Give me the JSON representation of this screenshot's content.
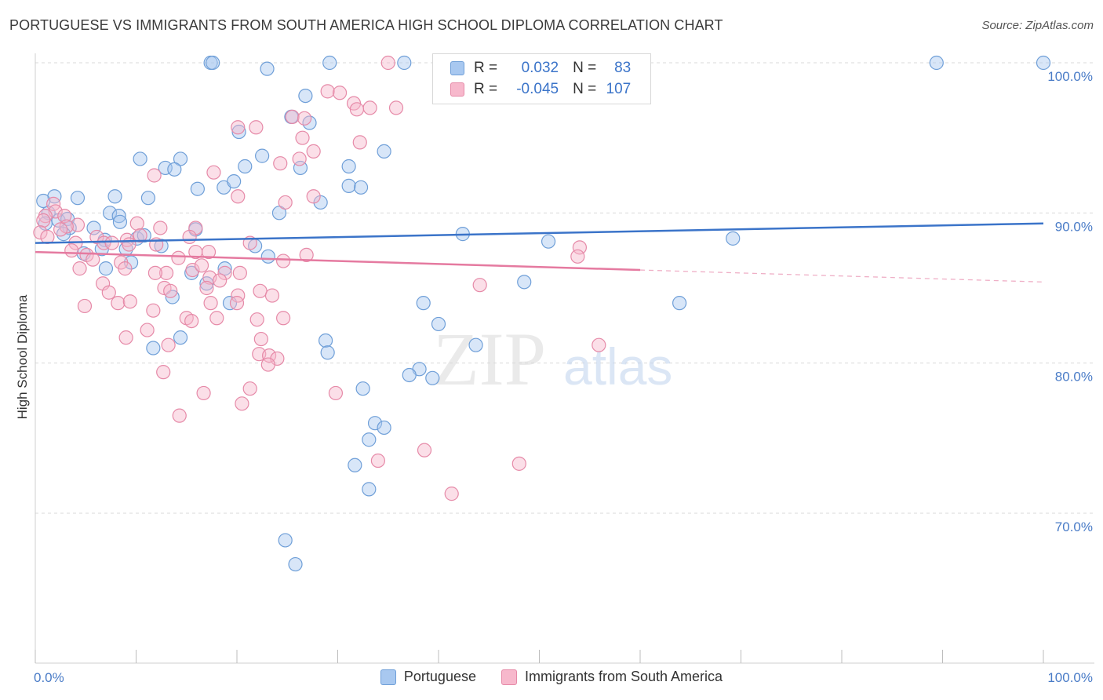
{
  "title": "PORTUGUESE VS IMMIGRANTS FROM SOUTH AMERICA HIGH SCHOOL DIPLOMA CORRELATION CHART",
  "source": "Source: ZipAtlas.com",
  "watermark": {
    "zip": "ZIP",
    "atlas": "atlas"
  },
  "legend": {
    "r_label": "R =",
    "n_label": "N =",
    "rows": [
      {
        "name": "Portuguese",
        "r": "0.032",
        "n": "83",
        "color": "#a8c8f0",
        "stroke": "#6f9fd8"
      },
      {
        "name": "Immigrants from South America",
        "r": "-0.045",
        "n": "107",
        "color": "#f7b8cc",
        "stroke": "#e68aa8"
      }
    ]
  },
  "chart_data": {
    "type": "scatter",
    "title": "PORTUGUESE VS IMMIGRANTS FROM SOUTH AMERICA HIGH SCHOOL DIPLOMA CORRELATION CHART",
    "xlabel": "",
    "ylabel": "High School Diploma",
    "xlim": [
      0,
      100
    ],
    "ylim": [
      60,
      102
    ],
    "x_tick_labels": [
      "0.0%",
      "100.0%"
    ],
    "y_ticks": [
      70,
      80,
      90,
      100
    ],
    "y_tick_labels": [
      "70.0%",
      "80.0%",
      "90.0%",
      "100.0%"
    ],
    "grid": true,
    "series": [
      {
        "name": "Portuguese",
        "color": "#a8c8f0",
        "stroke": "#6f9fd8",
        "line_color": "#3b74c9",
        "trend": {
          "x0": 0,
          "y0": 88.0,
          "x1": 100,
          "y1": 89.3,
          "solid_until": 100
        },
        "points": [
          [
            17.4,
            100
          ],
          [
            17.6,
            100
          ],
          [
            23.0,
            99.6
          ],
          [
            29.2,
            100
          ],
          [
            36.6,
            100
          ],
          [
            89.4,
            100
          ],
          [
            100,
            100
          ],
          [
            26.8,
            97.8
          ],
          [
            27.2,
            96.0
          ],
          [
            25.4,
            96.4
          ],
          [
            20.2,
            95.4
          ],
          [
            34.6,
            94.1
          ],
          [
            10.4,
            93.6
          ],
          [
            14.4,
            93.6
          ],
          [
            22.5,
            93.8
          ],
          [
            12.9,
            93.0
          ],
          [
            13.8,
            92.9
          ],
          [
            20.8,
            93.1
          ],
          [
            26.3,
            93.0
          ],
          [
            31.1,
            93.1
          ],
          [
            18.7,
            91.7
          ],
          [
            16.1,
            91.6
          ],
          [
            19.7,
            92.1
          ],
          [
            31.1,
            91.8
          ],
          [
            32.3,
            91.7
          ],
          [
            1.9,
            91.1
          ],
          [
            4.2,
            91.0
          ],
          [
            7.9,
            91.1
          ],
          [
            11.2,
            91.0
          ],
          [
            28.3,
            90.7
          ],
          [
            0.8,
            90.8
          ],
          [
            1.3,
            90.0
          ],
          [
            7.4,
            90.0
          ],
          [
            8.3,
            89.8
          ],
          [
            24.2,
            90.0
          ],
          [
            2.3,
            89.5
          ],
          [
            3.2,
            89.6
          ],
          [
            1.0,
            89.3
          ],
          [
            3.4,
            89.0
          ],
          [
            5.8,
            89.0
          ],
          [
            8.4,
            89.4
          ],
          [
            15.9,
            88.9
          ],
          [
            2.8,
            88.6
          ],
          [
            10.1,
            88.3
          ],
          [
            10.8,
            88.5
          ],
          [
            6.9,
            88.2
          ],
          [
            42.4,
            88.6
          ],
          [
            4.8,
            87.3
          ],
          [
            6.6,
            87.6
          ],
          [
            9.0,
            87.6
          ],
          [
            12.5,
            87.8
          ],
          [
            21.8,
            87.8
          ],
          [
            50.9,
            88.1
          ],
          [
            69.2,
            88.3
          ],
          [
            23.1,
            87.1
          ],
          [
            9.5,
            86.7
          ],
          [
            7.0,
            86.3
          ],
          [
            15.5,
            86.0
          ],
          [
            18.8,
            86.3
          ],
          [
            17.0,
            85.3
          ],
          [
            48.5,
            85.4
          ],
          [
            13.6,
            84.4
          ],
          [
            19.3,
            84.0
          ],
          [
            38.5,
            84.0
          ],
          [
            63.9,
            84.0
          ],
          [
            40.0,
            82.6
          ],
          [
            14.4,
            81.7
          ],
          [
            28.8,
            81.5
          ],
          [
            43.7,
            81.2
          ],
          [
            11.7,
            81.0
          ],
          [
            29.0,
            80.7
          ],
          [
            38.1,
            79.6
          ],
          [
            37.1,
            79.2
          ],
          [
            39.4,
            79.0
          ],
          [
            32.5,
            78.3
          ],
          [
            33.7,
            76.0
          ],
          [
            34.6,
            75.7
          ],
          [
            33.1,
            74.9
          ],
          [
            31.7,
            73.2
          ],
          [
            33.1,
            71.6
          ],
          [
            24.8,
            68.2
          ],
          [
            25.8,
            66.6
          ]
        ]
      },
      {
        "name": "Immigrants from South America",
        "color": "#f7b8cc",
        "stroke": "#e68aa8",
        "line_color": "#e57aa0",
        "trend": {
          "x0": 0,
          "y0": 87.4,
          "x1": 100,
          "y1": 85.4,
          "solid_until": 60
        },
        "points": [
          [
            35.0,
            100
          ],
          [
            29.0,
            98.1
          ],
          [
            30.2,
            98.0
          ],
          [
            31.6,
            97.3
          ],
          [
            33.2,
            97.0
          ],
          [
            35.8,
            97.0
          ],
          [
            31.9,
            96.9
          ],
          [
            25.5,
            96.4
          ],
          [
            26.7,
            96.3
          ],
          [
            20.1,
            95.7
          ],
          [
            21.9,
            95.7
          ],
          [
            26.5,
            95.0
          ],
          [
            32.2,
            94.7
          ],
          [
            27.6,
            94.1
          ],
          [
            26.2,
            93.6
          ],
          [
            24.3,
            93.3
          ],
          [
            17.7,
            92.7
          ],
          [
            11.8,
            92.5
          ],
          [
            20.1,
            91.1
          ],
          [
            27.6,
            91.1
          ],
          [
            24.8,
            90.7
          ],
          [
            1.8,
            90.6
          ],
          [
            2.0,
            90.1
          ],
          [
            1.0,
            89.8
          ],
          [
            2.9,
            89.8
          ],
          [
            0.8,
            89.5
          ],
          [
            4.2,
            89.2
          ],
          [
            10.1,
            89.3
          ],
          [
            3.1,
            89.1
          ],
          [
            12.4,
            89.0
          ],
          [
            15.9,
            89.0
          ],
          [
            0.5,
            88.7
          ],
          [
            1.2,
            88.4
          ],
          [
            6.1,
            88.4
          ],
          [
            9.1,
            88.2
          ],
          [
            10.4,
            88.5
          ],
          [
            15.3,
            88.4
          ],
          [
            6.8,
            88.0
          ],
          [
            9.3,
            87.9
          ],
          [
            12.0,
            87.9
          ],
          [
            21.3,
            88.0
          ],
          [
            5.1,
            87.2
          ],
          [
            15.9,
            87.4
          ],
          [
            17.2,
            87.4
          ],
          [
            26.9,
            87.2
          ],
          [
            14.2,
            87.0
          ],
          [
            8.5,
            86.7
          ],
          [
            24.6,
            86.8
          ],
          [
            54.0,
            87.7
          ],
          [
            53.8,
            87.1
          ],
          [
            4.4,
            86.3
          ],
          [
            8.9,
            86.3
          ],
          [
            13.0,
            86.0
          ],
          [
            18.8,
            86.0
          ],
          [
            15.6,
            86.2
          ],
          [
            20.3,
            86.0
          ],
          [
            11.9,
            86.0
          ],
          [
            17.3,
            85.7
          ],
          [
            6.7,
            85.3
          ],
          [
            12.8,
            85.0
          ],
          [
            13.4,
            84.8
          ],
          [
            20.1,
            84.5
          ],
          [
            22.3,
            84.8
          ],
          [
            23.5,
            84.5
          ],
          [
            44.1,
            85.2
          ],
          [
            7.3,
            84.7
          ],
          [
            8.2,
            84.0
          ],
          [
            9.4,
            84.1
          ],
          [
            11.7,
            83.5
          ],
          [
            15.0,
            83.0
          ],
          [
            24.6,
            83.0
          ],
          [
            17.4,
            84.0
          ],
          [
            20.0,
            84.0
          ],
          [
            4.9,
            83.8
          ],
          [
            15.5,
            82.8
          ],
          [
            22.0,
            82.9
          ],
          [
            9.0,
            81.7
          ],
          [
            11.1,
            82.2
          ],
          [
            22.4,
            81.6
          ],
          [
            13.2,
            81.2
          ],
          [
            55.9,
            81.2
          ],
          [
            22.2,
            80.6
          ],
          [
            23.2,
            80.5
          ],
          [
            24.0,
            80.3
          ],
          [
            23.1,
            79.9
          ],
          [
            12.7,
            79.4
          ],
          [
            21.3,
            78.3
          ],
          [
            16.7,
            78.0
          ],
          [
            29.8,
            78.0
          ],
          [
            20.5,
            77.3
          ],
          [
            14.3,
            76.5
          ],
          [
            34.0,
            73.5
          ],
          [
            38.6,
            74.2
          ],
          [
            48.0,
            73.3
          ],
          [
            41.3,
            71.3
          ],
          [
            5.7,
            86.9
          ],
          [
            2.5,
            88.9
          ],
          [
            7.6,
            88.0
          ],
          [
            17.0,
            85.0
          ],
          [
            18.0,
            83.0
          ],
          [
            16.5,
            86.5
          ],
          [
            4.0,
            88.0
          ],
          [
            3.6,
            87.5
          ],
          [
            18.3,
            85.5
          ]
        ]
      }
    ]
  }
}
